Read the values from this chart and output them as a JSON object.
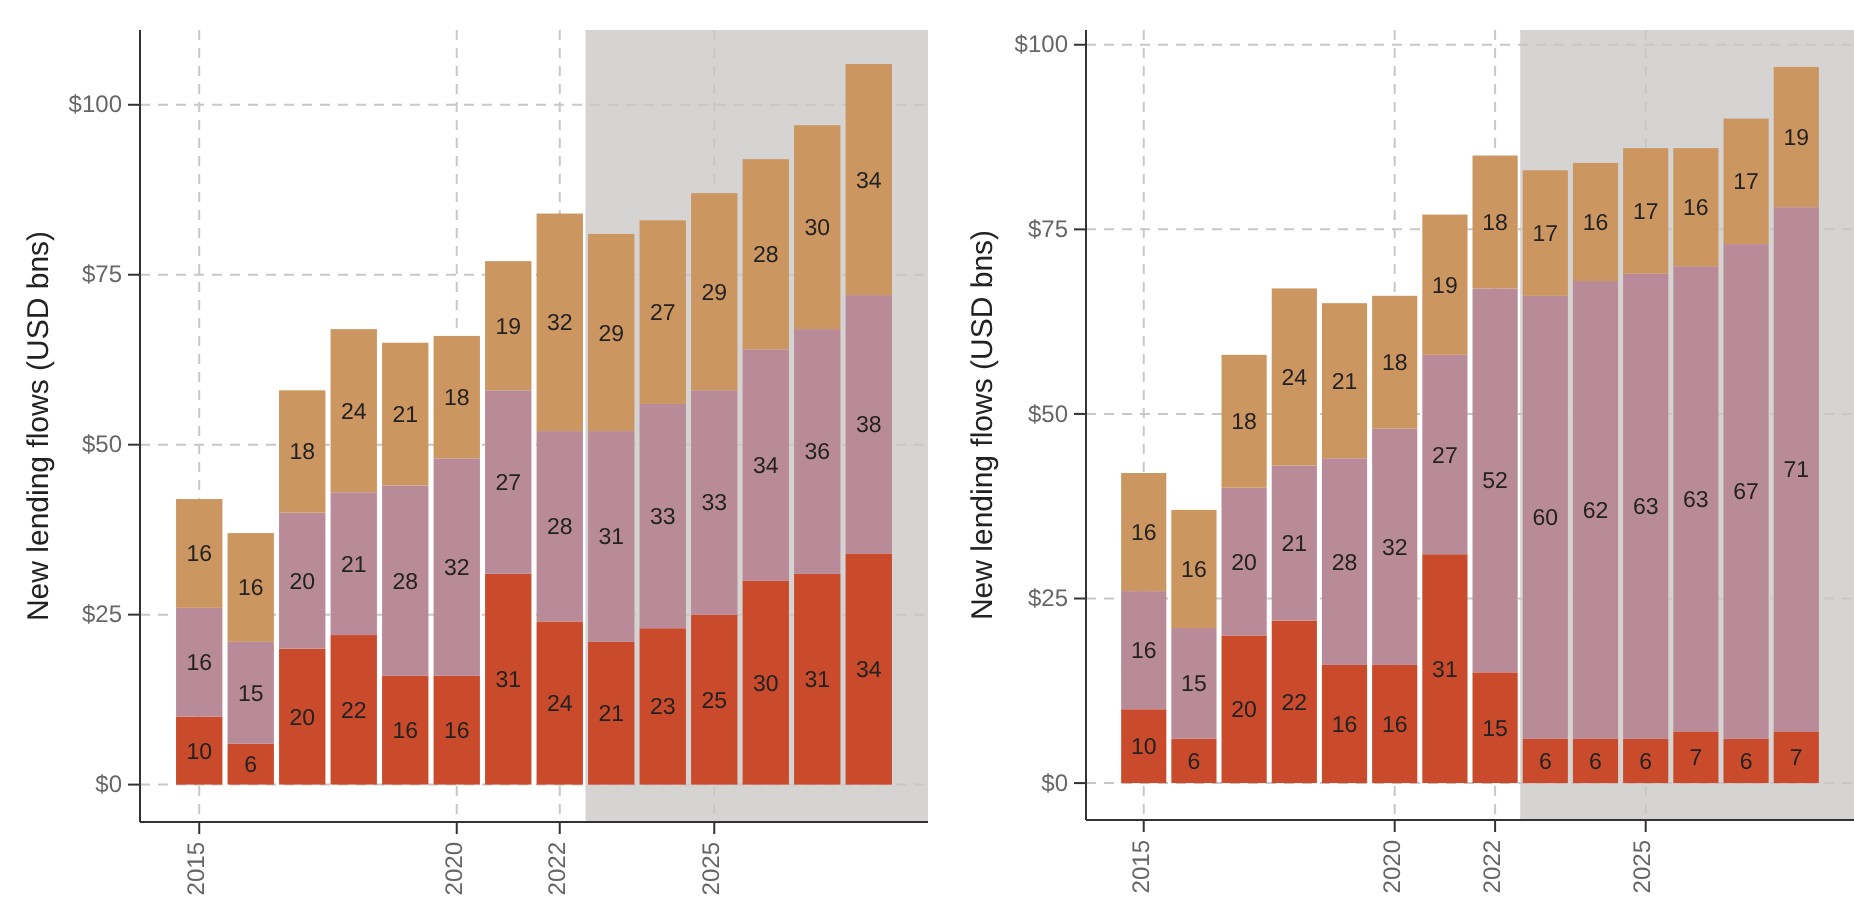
{
  "chart_data": [
    {
      "type": "bar",
      "stacked": true,
      "ylabel": "New lending flows (USD bns)",
      "x": [
        2015,
        2016,
        2017,
        2018,
        2019,
        2020,
        2021,
        2022,
        2023,
        2024,
        2025,
        2026,
        2027,
        2028
      ],
      "xlim": [
        2013.85,
        2029.15
      ],
      "xticks": [
        2015,
        2020,
        2022,
        2025
      ],
      "ylim": [
        -5.5,
        111
      ],
      "yticks": [
        {
          "value": 0,
          "label": "$0"
        },
        {
          "value": 25,
          "label": "$25"
        },
        {
          "value": 50,
          "label": "$50"
        },
        {
          "value": 75,
          "label": "$75"
        },
        {
          "value": 100,
          "label": "$100"
        }
      ],
      "grid": true,
      "data_labels": true,
      "bands": [
        {
          "axis": "x",
          "from": 2022.5,
          "to": 2029.15,
          "color": "#d6d3d3"
        }
      ],
      "series": [
        {
          "color": "#c94b2c",
          "values": [
            10,
            6,
            20,
            22,
            16,
            16,
            31,
            24,
            21,
            23,
            25,
            30,
            31,
            34
          ]
        },
        {
          "color": "#b98b98",
          "values": [
            16,
            15,
            20,
            21,
            28,
            32,
            27,
            28,
            31,
            33,
            33,
            34,
            36,
            38
          ]
        },
        {
          "color": "#cc9661",
          "values": [
            16,
            16,
            18,
            24,
            21,
            18,
            19,
            32,
            29,
            27,
            29,
            28,
            30,
            34
          ]
        }
      ]
    },
    {
      "type": "bar",
      "stacked": true,
      "ylabel": "New lending flows (USD bns)",
      "x": [
        2015,
        2016,
        2017,
        2018,
        2019,
        2020,
        2021,
        2022,
        2023,
        2024,
        2025,
        2026,
        2027,
        2028
      ],
      "xlim": [
        2013.85,
        2029.15
      ],
      "xticks": [
        2015,
        2020,
        2022,
        2025
      ],
      "ylim": [
        -5,
        102
      ],
      "yticks": [
        {
          "value": 0,
          "label": "$0"
        },
        {
          "value": 25,
          "label": "$25"
        },
        {
          "value": 50,
          "label": "$50"
        },
        {
          "value": 75,
          "label": "$75"
        },
        {
          "value": 100,
          "label": "$100"
        }
      ],
      "grid": true,
      "data_labels": true,
      "bands": [
        {
          "axis": "x",
          "from": 2022.5,
          "to": 2029.15,
          "color": "#d6d3d3"
        }
      ],
      "series": [
        {
          "color": "#c94b2c",
          "values": [
            10,
            6,
            20,
            22,
            16,
            16,
            31,
            15,
            6,
            6,
            6,
            7,
            6,
            7
          ]
        },
        {
          "color": "#b98b98",
          "values": [
            16,
            15,
            20,
            21,
            28,
            32,
            27,
            52,
            60,
            62,
            63,
            63,
            67,
            71
          ]
        },
        {
          "color": "#cc9661",
          "values": [
            16,
            16,
            18,
            24,
            21,
            18,
            19,
            18,
            17,
            16,
            17,
            16,
            17,
            19
          ]
        }
      ]
    }
  ]
}
